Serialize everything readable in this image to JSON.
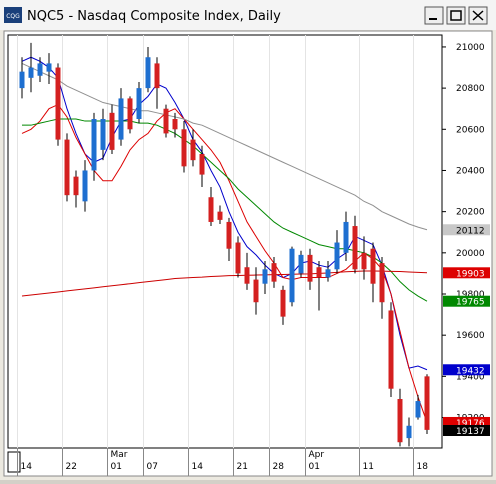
{
  "window_title": "NQC5 - Nasdaq Composite Index, Daily",
  "app_icon": "CQG",
  "chart_data": {
    "type": "candlestick",
    "categories": [
      "14",
      null,
      null,
      null,
      null,
      "22",
      null,
      null,
      null,
      null,
      "01",
      null,
      null,
      null,
      "07",
      null,
      null,
      null,
      null,
      "14",
      null,
      null,
      null,
      null,
      "21",
      null,
      null,
      null,
      "28",
      null,
      null,
      null,
      "01",
      null,
      null,
      null,
      null,
      null,
      "11",
      null,
      null,
      null,
      null,
      null,
      "18",
      null
    ],
    "month_labels": [
      {
        "category": 10,
        "label": "Mar"
      },
      {
        "category": 32,
        "label": "Apr"
      }
    ],
    "open": [
      20800,
      20850,
      20860,
      20880,
      20900,
      20550,
      20370,
      20250,
      20400,
      20500,
      20680,
      20550,
      20750,
      20650,
      20800,
      20920,
      20700,
      20650,
      20600,
      20550,
      20480,
      20270,
      20200,
      20150,
      20050,
      19930,
      19870,
      19850,
      19950,
      19820,
      19760,
      19900,
      19990,
      19930,
      19880,
      19920,
      20000,
      20130,
      20000,
      20020,
      19950,
      19720,
      19290,
      19100,
      19200,
      19400
    ],
    "high": [
      20950,
      21020,
      20950,
      20970,
      20920,
      20580,
      20400,
      20450,
      20680,
      20700,
      20720,
      20800,
      20760,
      20830,
      21000,
      20950,
      20720,
      20680,
      20640,
      20600,
      20520,
      20320,
      20230,
      20170,
      20080,
      20000,
      19930,
      19960,
      19980,
      19840,
      20030,
      20010,
      20020,
      19960,
      19960,
      20110,
      20200,
      20180,
      20080,
      20050,
      19980,
      19760,
      19340,
      19200,
      19310,
      19410
    ],
    "low": [
      20750,
      20780,
      20830,
      20820,
      20520,
      20250,
      20220,
      20200,
      20350,
      20450,
      20480,
      20520,
      20580,
      20630,
      20780,
      20700,
      20560,
      20560,
      20390,
      20420,
      20320,
      20130,
      20140,
      19960,
      19880,
      19820,
      19700,
      19800,
      19830,
      19650,
      19740,
      19880,
      19820,
      19720,
      19860,
      19900,
      19960,
      19900,
      19870,
      19760,
      19680,
      19300,
      19060,
      19060,
      19190,
      19120
    ],
    "close": [
      20880,
      20900,
      20920,
      20920,
      20550,
      20280,
      20280,
      20400,
      20650,
      20650,
      20500,
      20750,
      20600,
      20800,
      20950,
      20800,
      20580,
      20600,
      20420,
      20450,
      20380,
      20150,
      20160,
      20020,
      19900,
      19850,
      19760,
      19920,
      19860,
      19690,
      20020,
      19990,
      19860,
      19880,
      19920,
      20050,
      20150,
      19920,
      19920,
      19850,
      19760,
      19340,
      19080,
      19160,
      19280,
      19140
    ],
    "up_color": "#1e6fd0",
    "down_color": "#d42020",
    "series": [
      {
        "color": "#0000cc",
        "values": [
          20930,
          20950,
          20930,
          20900,
          20850,
          20700,
          20580,
          20480,
          20440,
          20460,
          20560,
          20640,
          20650,
          20720,
          20760,
          20820,
          20800,
          20730,
          20650,
          20550,
          20490,
          20400,
          20320,
          20200,
          20100,
          20030,
          19990,
          19940,
          19900,
          19880,
          19900,
          19950,
          19960,
          19940,
          19930,
          19970,
          20000,
          20080,
          20060,
          20040,
          19940,
          19800,
          19600,
          19440,
          19450,
          19432
        ]
      },
      {
        "color": "#dd0000",
        "values": [
          20580,
          20600,
          20640,
          20700,
          20720,
          20660,
          20560,
          20480,
          20400,
          20350,
          20350,
          20420,
          20500,
          20550,
          20580,
          20640,
          20680,
          20700,
          20650,
          20600,
          20550,
          20500,
          20440,
          20350,
          20250,
          20150,
          20080,
          20010,
          19950,
          19880,
          19870,
          19880,
          19880,
          19880,
          19880,
          19900,
          19920,
          19960,
          20000,
          19970,
          19920,
          19800,
          19620,
          19440,
          19300,
          19176
        ]
      },
      {
        "color": "#008800",
        "values": [
          20620,
          20620,
          20630,
          20640,
          20650,
          20650,
          20650,
          20640,
          20640,
          20640,
          20640,
          20640,
          20640,
          20630,
          20630,
          20620,
          20600,
          20580,
          20550,
          20520,
          20480,
          20440,
          20400,
          20360,
          20310,
          20270,
          20230,
          20190,
          20150,
          20120,
          20100,
          20080,
          20060,
          20040,
          20030,
          20020,
          20020,
          20010,
          20000,
          19980,
          19950,
          19910,
          19860,
          19820,
          19790,
          19765
        ]
      },
      {
        "color": "#909090",
        "values": [
          20920,
          20900,
          20880,
          20860,
          20840,
          20810,
          20790,
          20770,
          20750,
          20730,
          20720,
          20710,
          20700,
          20690,
          20690,
          20680,
          20670,
          20660,
          20650,
          20630,
          20620,
          20600,
          20580,
          20560,
          20540,
          20520,
          20500,
          20480,
          20460,
          20440,
          20420,
          20400,
          20380,
          20360,
          20340,
          20320,
          20300,
          20280,
          20250,
          20230,
          20200,
          20180,
          20160,
          20140,
          20125,
          20112
        ]
      },
      {
        "color": "#cc0000",
        "values": [
          19790,
          19795,
          19800,
          19805,
          19810,
          19815,
          19820,
          19825,
          19830,
          19835,
          19840,
          19845,
          19850,
          19855,
          19860,
          19865,
          19870,
          19875,
          19878,
          19880,
          19882,
          19885,
          19887,
          19889,
          19890,
          19891,
          19892,
          19893,
          19894,
          19895,
          19896,
          19897,
          19898,
          19900,
          19902,
          19905,
          19908,
          19910,
          19912,
          19912,
          19911,
          19910,
          19909,
          19907,
          19905,
          19903
        ]
      }
    ],
    "price_tags": [
      {
        "value": 20112,
        "color": "#c8c8c8",
        "text_color": "#000000"
      },
      {
        "value": 19903,
        "color": "#dd0000",
        "text_color": "#ffffff"
      },
      {
        "value": 19765,
        "color": "#008800",
        "text_color": "#ffffff"
      },
      {
        "value": 19432,
        "color": "#0000cc",
        "text_color": "#ffffff"
      },
      {
        "value": 19176,
        "color": "#dd0000",
        "text_color": "#ffffff"
      },
      {
        "value": 19137,
        "color": "#000000",
        "text_color": "#ffffff"
      }
    ],
    "ylim": [
      19052,
      21058
    ],
    "yticks": [
      19200,
      19400,
      19600,
      19800,
      20000,
      20200,
      20400,
      20600,
      20800,
      21000
    ]
  }
}
